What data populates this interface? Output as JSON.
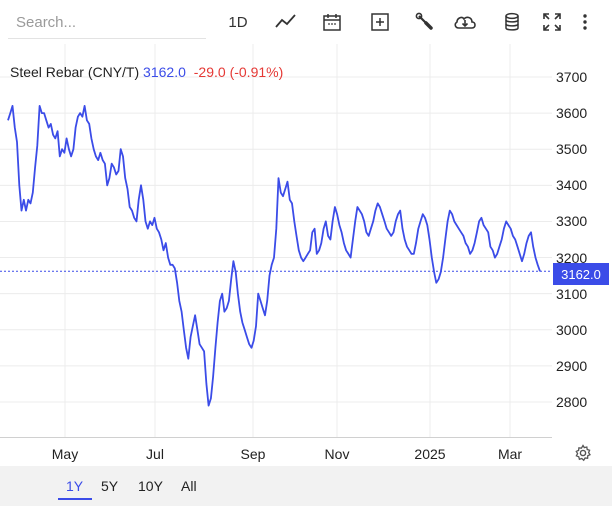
{
  "toolbar": {
    "search_placeholder": "Search...",
    "interval_label": "1D",
    "icons": [
      "line-chart-icon",
      "calendar-icon",
      "add-plus-icon",
      "wrench-icon",
      "cloud-download-icon",
      "database-icon",
      "fullscreen-icon",
      "more-vertical-icon"
    ]
  },
  "legend": {
    "name": "Steel Rebar (CNY/T)",
    "price": "3162.0",
    "change": "-29.0 (-0.91%)"
  },
  "colors": {
    "line": "#3b4ce8",
    "negative": "#e53935",
    "footer_bg": "#f2f2f2"
  },
  "chart_data": {
    "type": "line",
    "title": "Steel Rebar (CNY/T)",
    "xlabel": "",
    "ylabel": "",
    "ylim": [
      2700,
      3760
    ],
    "y_ticks": [
      "3700",
      "3600",
      "3500",
      "3400",
      "3300",
      "3200",
      "3100",
      "3000",
      "2900",
      "2800"
    ],
    "x_ticks": [
      "May",
      "Jul",
      "Sep",
      "Nov",
      "2025",
      "Mar"
    ],
    "last_price": "3162.0",
    "series": [
      {
        "values": [
          3580,
          3600,
          3620,
          3560,
          3520,
          3400,
          3330,
          3360,
          3330,
          3360,
          3350,
          3380,
          3450,
          3510,
          3620,
          3600,
          3600,
          3580,
          3560,
          3570,
          3540,
          3530,
          3550,
          3480,
          3500,
          3490,
          3530,
          3500,
          3480,
          3500,
          3560,
          3590,
          3600,
          3590,
          3620,
          3580,
          3570,
          3530,
          3500,
          3480,
          3470,
          3490,
          3470,
          3460,
          3400,
          3420,
          3460,
          3450,
          3430,
          3440,
          3500,
          3480,
          3420,
          3390,
          3340,
          3330,
          3310,
          3300,
          3360,
          3400,
          3360,
          3300,
          3280,
          3300,
          3290,
          3310,
          3280,
          3270,
          3250,
          3220,
          3240,
          3200,
          3180,
          3180,
          3170,
          3130,
          3080,
          3050,
          3000,
          2950,
          2920,
          2980,
          3010,
          3040,
          3000,
          2960,
          2950,
          2940,
          2850,
          2790,
          2810,
          2870,
          2950,
          3020,
          3080,
          3100,
          3050,
          3060,
          3080,
          3140,
          3190,
          3160,
          3100,
          3050,
          3020,
          3000,
          2980,
          2960,
          2950,
          2970,
          3010,
          3100,
          3080,
          3060,
          3040,
          3080,
          3150,
          3180,
          3200,
          3280,
          3420,
          3380,
          3370,
          3390,
          3410,
          3360,
          3350,
          3300,
          3260,
          3220,
          3200,
          3190,
          3200,
          3210,
          3220,
          3270,
          3280,
          3210,
          3220,
          3240,
          3280,
          3300,
          3260,
          3250,
          3300,
          3340,
          3320,
          3290,
          3270,
          3240,
          3220,
          3210,
          3200,
          3250,
          3300,
          3340,
          3330,
          3320,
          3300,
          3270,
          3260,
          3280,
          3300,
          3330,
          3350,
          3340,
          3320,
          3300,
          3280,
          3270,
          3260,
          3270,
          3300,
          3320,
          3330,
          3280,
          3250,
          3230,
          3220,
          3210,
          3210,
          3240,
          3280,
          3300,
          3320,
          3310,
          3290,
          3250,
          3200,
          3160,
          3130,
          3140,
          3160,
          3200,
          3250,
          3300,
          3330,
          3320,
          3300,
          3290,
          3280,
          3270,
          3260,
          3240,
          3230,
          3210,
          3220,
          3240,
          3270,
          3300,
          3310,
          3290,
          3280,
          3270,
          3230,
          3220,
          3200,
          3210,
          3230,
          3250,
          3280,
          3300,
          3290,
          3280,
          3260,
          3250,
          3230,
          3210,
          3190,
          3210,
          3240,
          3260,
          3270,
          3230,
          3200,
          3180,
          3162
        ]
      }
    ]
  },
  "footer": {
    "ranges": [
      {
        "label": "1Y",
        "active": true
      },
      {
        "label": "5Y",
        "active": false
      },
      {
        "label": "10Y",
        "active": false
      },
      {
        "label": "All",
        "active": false
      }
    ]
  }
}
